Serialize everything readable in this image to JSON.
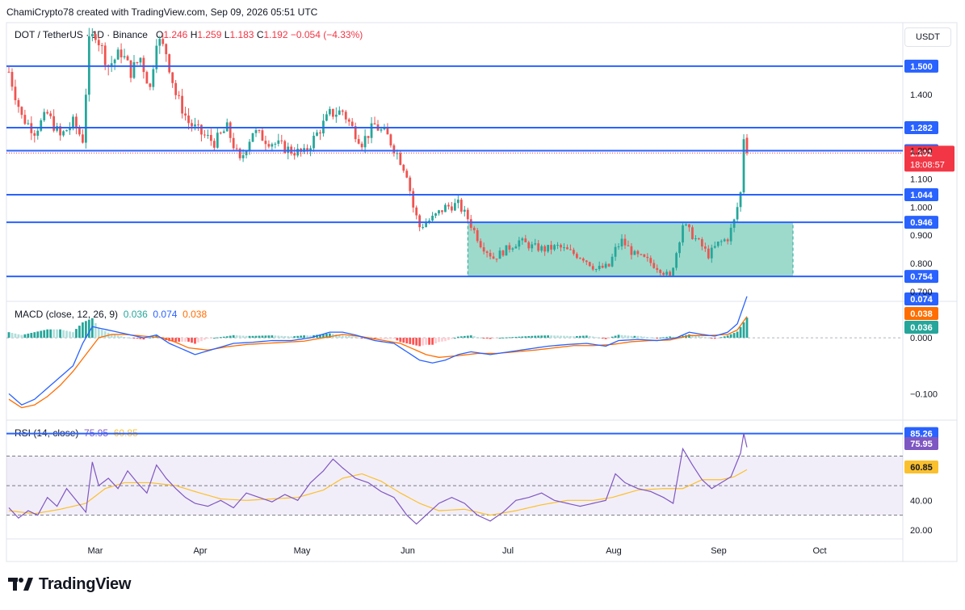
{
  "header": {
    "credit": "ChamiCrypto78 created with TradingView.com, Sep 09, 2026 05:51 UTC"
  },
  "legend": {
    "symbol": "DOT / TetherUS · 1D · Binance",
    "o_label": "O",
    "o_val": "1.246",
    "h_label": "H",
    "h_val": "1.259",
    "l_label": "L",
    "l_val": "1.183",
    "c_label": "C",
    "c_val": "1.192",
    "change": "−0.054 (−4.33%)"
  },
  "currency_button": "USDT",
  "macd_legend": {
    "label": "MACD (close, 12, 26, 9)",
    "hist": "0.036",
    "macd": "0.074",
    "signal": "0.038"
  },
  "rsi_legend": {
    "label": "RSI (14, close)",
    "rsi": "75.95",
    "ma": "60.85"
  },
  "logo": {
    "text": "TradingView"
  },
  "colors": {
    "up": "#26a69a",
    "down": "#ef5350",
    "level": "#2962ff",
    "box": "#5cc2aa",
    "macd": "#2962ff",
    "signal": "#ff6d00",
    "rsi": "#7e57c2",
    "rsi_ma": "#fbc02d",
    "price_tag": "#f23645"
  },
  "chart_data": [
    {
      "type": "candlestick",
      "title": "DOT / TetherUS · 1D · Binance",
      "x_ticks": [
        "Mar",
        "Apr",
        "May",
        "Jun",
        "Jul",
        "Aug",
        "Sep",
        "Oct"
      ],
      "y_ticks": [
        "0.700",
        "0.800",
        "0.900",
        "1.000",
        "1.100",
        "1.200",
        "1.400"
      ],
      "y_range": [
        0.68,
        1.62
      ],
      "last": {
        "open": 1.246,
        "high": 1.259,
        "low": 1.183,
        "close": 1.192,
        "countdown": "18:08:57"
      },
      "horizontal_levels": [
        {
          "value": 1.5,
          "label": "1.500"
        },
        {
          "value": 1.282,
          "label": "1.282"
        },
        {
          "value": 1.2,
          "label": "1.200"
        },
        {
          "value": 1.044,
          "label": "1.044"
        },
        {
          "value": 0.946,
          "label": "0.946"
        },
        {
          "value": 0.754,
          "label": "0.754"
        }
      ],
      "price_tag": {
        "value": 1.192,
        "label": "1.192"
      },
      "range_box": {
        "from_day": 143,
        "to_day": 245,
        "top": 0.946,
        "bottom": 0.754
      },
      "anchors": [
        [
          0,
          1.48
        ],
        [
          4,
          1.32
        ],
        [
          8,
          1.27
        ],
        [
          12,
          1.33
        ],
        [
          16,
          1.25
        ],
        [
          20,
          1.3
        ],
        [
          23,
          1.24
        ],
        [
          25,
          1.58
        ],
        [
          27,
          1.62
        ],
        [
          31,
          1.5
        ],
        [
          35,
          1.55
        ],
        [
          38,
          1.48
        ],
        [
          41,
          1.53
        ],
        [
          44,
          1.42
        ],
        [
          46,
          1.6
        ],
        [
          49,
          1.55
        ],
        [
          52,
          1.4
        ],
        [
          56,
          1.3
        ],
        [
          60,
          1.26
        ],
        [
          64,
          1.23
        ],
        [
          68,
          1.28
        ],
        [
          72,
          1.16
        ],
        [
          76,
          1.27
        ],
        [
          80,
          1.24
        ],
        [
          84,
          1.22
        ],
        [
          88,
          1.2
        ],
        [
          92,
          1.19
        ],
        [
          96,
          1.26
        ],
        [
          100,
          1.33
        ],
        [
          104,
          1.34
        ],
        [
          107,
          1.28
        ],
        [
          110,
          1.23
        ],
        [
          114,
          1.29
        ],
        [
          118,
          1.25
        ],
        [
          121,
          1.19
        ],
        [
          124,
          1.12
        ],
        [
          126,
          1.0
        ],
        [
          128,
          0.93
        ],
        [
          132,
          0.96
        ],
        [
          136,
          1.0
        ],
        [
          140,
          1.01
        ],
        [
          143,
          0.96
        ],
        [
          147,
          0.87
        ],
        [
          151,
          0.82
        ],
        [
          155,
          0.85
        ],
        [
          159,
          0.88
        ],
        [
          163,
          0.86
        ],
        [
          167,
          0.85
        ],
        [
          171,
          0.86
        ],
        [
          175,
          0.84
        ],
        [
          179,
          0.82
        ],
        [
          183,
          0.78
        ],
        [
          187,
          0.79
        ],
        [
          189,
          0.85
        ],
        [
          191,
          0.88
        ],
        [
          195,
          0.83
        ],
        [
          199,
          0.81
        ],
        [
          203,
          0.78
        ],
        [
          206,
          0.75
        ],
        [
          208,
          0.84
        ],
        [
          210,
          0.94
        ],
        [
          213,
          0.9
        ],
        [
          216,
          0.86
        ],
        [
          218,
          0.83
        ],
        [
          221,
          0.87
        ],
        [
          224,
          0.89
        ],
        [
          226,
          0.95
        ],
        [
          228,
          1.05
        ],
        [
          229,
          1.25
        ],
        [
          230,
          1.192
        ]
      ]
    },
    {
      "type": "line+histogram",
      "title": "MACD (close, 12, 26, 9)",
      "y_ticks": [
        "0.000",
        "-0.100"
      ],
      "y_range": [
        -0.14,
        0.055
      ],
      "labels": {
        "macd": "0.074",
        "signal": "0.038",
        "hist": "0.036"
      },
      "macd_anchors": [
        [
          0,
          -0.1
        ],
        [
          4,
          -0.12
        ],
        [
          8,
          -0.11
        ],
        [
          12,
          -0.09
        ],
        [
          16,
          -0.07
        ],
        [
          20,
          -0.05
        ],
        [
          23,
          -0.01
        ],
        [
          26,
          0.02
        ],
        [
          30,
          0.015
        ],
        [
          34,
          0.01
        ],
        [
          38,
          0.005
        ],
        [
          42,
          0.0
        ],
        [
          46,
          0.005
        ],
        [
          50,
          -0.01
        ],
        [
          54,
          -0.02
        ],
        [
          58,
          -0.03
        ],
        [
          64,
          -0.02
        ],
        [
          70,
          -0.01
        ],
        [
          76,
          -0.008
        ],
        [
          82,
          -0.005
        ],
        [
          88,
          -0.005
        ],
        [
          94,
          0.0
        ],
        [
          100,
          0.01
        ],
        [
          104,
          0.01
        ],
        [
          108,
          0.005
        ],
        [
          114,
          -0.005
        ],
        [
          120,
          -0.01
        ],
        [
          124,
          -0.025
        ],
        [
          128,
          -0.04
        ],
        [
          132,
          -0.045
        ],
        [
          136,
          -0.04
        ],
        [
          140,
          -0.03
        ],
        [
          144,
          -0.025
        ],
        [
          150,
          -0.03
        ],
        [
          156,
          -0.025
        ],
        [
          162,
          -0.02
        ],
        [
          168,
          -0.015
        ],
        [
          174,
          -0.012
        ],
        [
          180,
          -0.01
        ],
        [
          186,
          -0.015
        ],
        [
          190,
          -0.005
        ],
        [
          196,
          -0.003
        ],
        [
          202,
          -0.005
        ],
        [
          208,
          0.0
        ],
        [
          212,
          0.01
        ],
        [
          216,
          0.006
        ],
        [
          220,
          0.003
        ],
        [
          224,
          0.01
        ],
        [
          227,
          0.025
        ],
        [
          230,
          0.074
        ]
      ],
      "signal_anchors": [
        [
          0,
          -0.11
        ],
        [
          4,
          -0.125
        ],
        [
          8,
          -0.12
        ],
        [
          12,
          -0.105
        ],
        [
          16,
          -0.085
        ],
        [
          20,
          -0.06
        ],
        [
          24,
          -0.03
        ],
        [
          28,
          0.0
        ],
        [
          32,
          0.006
        ],
        [
          36,
          0.006
        ],
        [
          40,
          0.004
        ],
        [
          44,
          0.002
        ],
        [
          48,
          0.0
        ],
        [
          52,
          -0.008
        ],
        [
          56,
          -0.018
        ],
        [
          62,
          -0.022
        ],
        [
          68,
          -0.016
        ],
        [
          74,
          -0.012
        ],
        [
          80,
          -0.01
        ],
        [
          86,
          -0.008
        ],
        [
          92,
          -0.006
        ],
        [
          98,
          0.0
        ],
        [
          104,
          0.006
        ],
        [
          110,
          0.002
        ],
        [
          116,
          -0.004
        ],
        [
          122,
          -0.01
        ],
        [
          126,
          -0.02
        ],
        [
          130,
          -0.03
        ],
        [
          134,
          -0.035
        ],
        [
          140,
          -0.032
        ],
        [
          146,
          -0.028
        ],
        [
          152,
          -0.028
        ],
        [
          158,
          -0.025
        ],
        [
          164,
          -0.022
        ],
        [
          170,
          -0.018
        ],
        [
          176,
          -0.014
        ],
        [
          182,
          -0.014
        ],
        [
          188,
          -0.012
        ],
        [
          194,
          -0.007
        ],
        [
          200,
          -0.005
        ],
        [
          206,
          -0.004
        ],
        [
          212,
          0.004
        ],
        [
          218,
          0.004
        ],
        [
          224,
          0.006
        ],
        [
          227,
          0.014
        ],
        [
          230,
          0.038
        ]
      ]
    },
    {
      "type": "line",
      "title": "RSI (14, close)",
      "y_ticks": [
        "20.00",
        "40.00"
      ],
      "y_range": [
        15,
        90
      ],
      "bands": {
        "upper": 70,
        "middle": 50,
        "lower": 30
      },
      "labels": {
        "max": "85.26",
        "rsi": "75.95",
        "ma": "60.85"
      },
      "max_value": 85.26,
      "rsi_anchors": [
        [
          0,
          35
        ],
        [
          3,
          28
        ],
        [
          6,
          33
        ],
        [
          9,
          30
        ],
        [
          12,
          42
        ],
        [
          15,
          36
        ],
        [
          18,
          48
        ],
        [
          21,
          40
        ],
        [
          24,
          32
        ],
        [
          26,
          66
        ],
        [
          28,
          50
        ],
        [
          31,
          55
        ],
        [
          34,
          48
        ],
        [
          37,
          60
        ],
        [
          40,
          52
        ],
        [
          43,
          45
        ],
        [
          46,
          64
        ],
        [
          49,
          55
        ],
        [
          52,
          48
        ],
        [
          55,
          42
        ],
        [
          58,
          38
        ],
        [
          62,
          36
        ],
        [
          66,
          40
        ],
        [
          70,
          35
        ],
        [
          74,
          45
        ],
        [
          78,
          42
        ],
        [
          82,
          39
        ],
        [
          86,
          44
        ],
        [
          90,
          40
        ],
        [
          94,
          52
        ],
        [
          98,
          60
        ],
        [
          101,
          68
        ],
        [
          104,
          62
        ],
        [
          108,
          55
        ],
        [
          112,
          52
        ],
        [
          116,
          46
        ],
        [
          120,
          42
        ],
        [
          124,
          30
        ],
        [
          127,
          24
        ],
        [
          130,
          30
        ],
        [
          134,
          38
        ],
        [
          138,
          42
        ],
        [
          142,
          38
        ],
        [
          146,
          30
        ],
        [
          150,
          26
        ],
        [
          154,
          32
        ],
        [
          158,
          40
        ],
        [
          162,
          42
        ],
        [
          166,
          45
        ],
        [
          170,
          40
        ],
        [
          174,
          38
        ],
        [
          178,
          36
        ],
        [
          182,
          38
        ],
        [
          186,
          40
        ],
        [
          189,
          58
        ],
        [
          192,
          52
        ],
        [
          196,
          48
        ],
        [
          200,
          46
        ],
        [
          204,
          42
        ],
        [
          207,
          38
        ],
        [
          210,
          75
        ],
        [
          213,
          64
        ],
        [
          216,
          54
        ],
        [
          219,
          48
        ],
        [
          222,
          52
        ],
        [
          225,
          56
        ],
        [
          228,
          72
        ],
        [
          229,
          85.26
        ],
        [
          230,
          75.95
        ]
      ],
      "ma_anchors": [
        [
          0,
          33
        ],
        [
          8,
          31
        ],
        [
          16,
          34
        ],
        [
          24,
          38
        ],
        [
          30,
          48
        ],
        [
          36,
          52
        ],
        [
          44,
          52
        ],
        [
          52,
          50
        ],
        [
          58,
          46
        ],
        [
          66,
          41
        ],
        [
          74,
          40
        ],
        [
          82,
          41
        ],
        [
          90,
          42
        ],
        [
          98,
          47
        ],
        [
          104,
          55
        ],
        [
          110,
          58
        ],
        [
          116,
          53
        ],
        [
          122,
          45
        ],
        [
          128,
          38
        ],
        [
          134,
          33
        ],
        [
          142,
          34
        ],
        [
          150,
          30
        ],
        [
          158,
          33
        ],
        [
          166,
          37
        ],
        [
          174,
          40
        ],
        [
          182,
          40
        ],
        [
          188,
          42
        ],
        [
          196,
          47
        ],
        [
          204,
          48
        ],
        [
          210,
          48
        ],
        [
          216,
          54
        ],
        [
          222,
          54
        ],
        [
          226,
          56
        ],
        [
          230,
          60.85
        ]
      ]
    }
  ]
}
